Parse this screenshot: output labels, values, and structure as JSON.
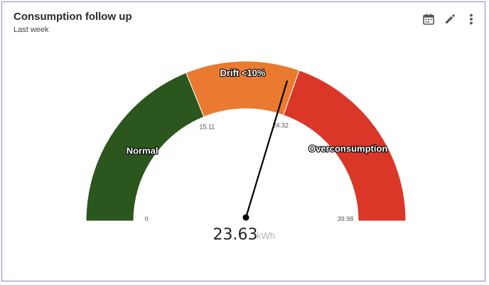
{
  "widget": {
    "title": "Consumption follow up",
    "subtitle": "Last week"
  },
  "toolbar": {
    "icons": [
      "calendar-icon",
      "pencil-icon",
      "more-vertical-icon"
    ]
  },
  "colors": {
    "normal": "#2b561d",
    "drift": "#ea7a30",
    "overconsumption": "#da3729",
    "needle": "#000000",
    "border": "#8c86d6"
  },
  "chart_data": {
    "type": "gauge",
    "min": 0,
    "max": 39.98,
    "value": 23.63,
    "value_label": "23.63",
    "unit": "kWh",
    "bands": [
      {
        "label": "Normal",
        "from": 0,
        "to": 15.11
      },
      {
        "label": "Drift <10%",
        "from": 15.11,
        "to": 24.32
      },
      {
        "label": "Overconsumption",
        "from": 24.32,
        "to": 39.98
      }
    ],
    "tick_labels": [
      "0",
      "15.11",
      "24.32",
      "39.98"
    ]
  }
}
